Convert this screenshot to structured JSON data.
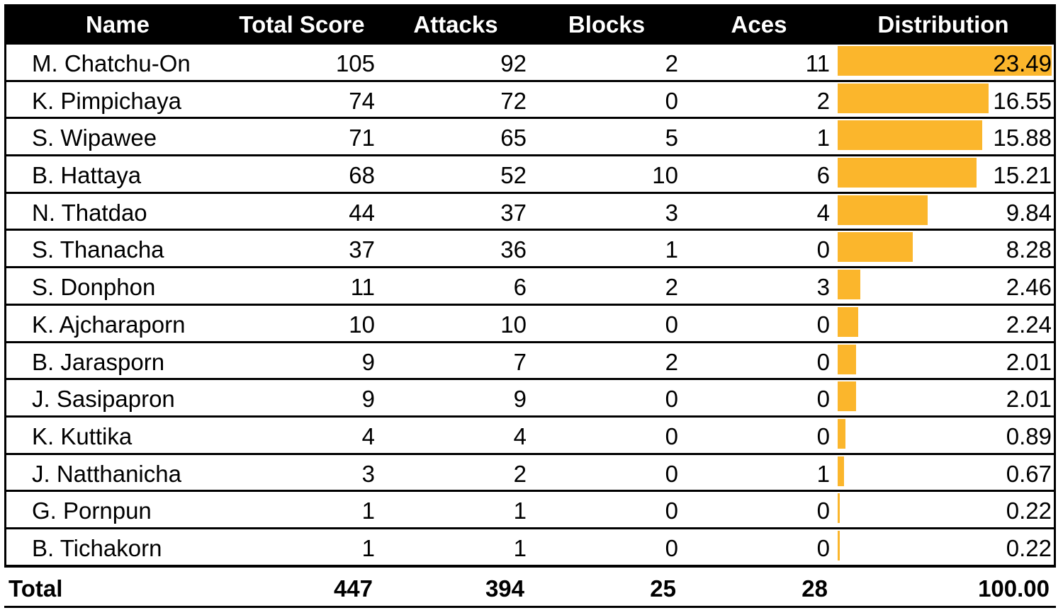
{
  "header": {
    "name": "Name",
    "total_score": "Total Score",
    "attacks": "Attacks",
    "blocks": "Blocks",
    "aces": "Aces",
    "distribution": "Distribution"
  },
  "bar_color": "#fbb62c",
  "rows": [
    {
      "name": "M. Chatchu-On",
      "score": "105",
      "attacks": "92",
      "blocks": "2",
      "aces": "11",
      "dist": "23.49",
      "dist_value": 23.49
    },
    {
      "name": "K. Pimpichaya",
      "score": "74",
      "attacks": "72",
      "blocks": "0",
      "aces": "2",
      "dist": "16.55",
      "dist_value": 16.55
    },
    {
      "name": "S. Wipawee",
      "score": "71",
      "attacks": "65",
      "blocks": "5",
      "aces": "1",
      "dist": "15.88",
      "dist_value": 15.88
    },
    {
      "name": "B. Hattaya",
      "score": "68",
      "attacks": "52",
      "blocks": "10",
      "aces": "6",
      "dist": "15.21",
      "dist_value": 15.21
    },
    {
      "name": "N. Thatdao",
      "score": "44",
      "attacks": "37",
      "blocks": "3",
      "aces": "4",
      "dist": "9.84",
      "dist_value": 9.84
    },
    {
      "name": "S. Thanacha",
      "score": "37",
      "attacks": "36",
      "blocks": "1",
      "aces": "0",
      "dist": "8.28",
      "dist_value": 8.28
    },
    {
      "name": "S. Donphon",
      "score": "11",
      "attacks": "6",
      "blocks": "2",
      "aces": "3",
      "dist": "2.46",
      "dist_value": 2.46
    },
    {
      "name": "K. Ajcharaporn",
      "score": "10",
      "attacks": "10",
      "blocks": "0",
      "aces": "0",
      "dist": "2.24",
      "dist_value": 2.24
    },
    {
      "name": "B. Jarasporn",
      "score": "9",
      "attacks": "7",
      "blocks": "2",
      "aces": "0",
      "dist": "2.01",
      "dist_value": 2.01
    },
    {
      "name": "J. Sasipapron",
      "score": "9",
      "attacks": "9",
      "blocks": "0",
      "aces": "0",
      "dist": "2.01",
      "dist_value": 2.01
    },
    {
      "name": "K. Kuttika",
      "score": "4",
      "attacks": "4",
      "blocks": "0",
      "aces": "0",
      "dist": "0.89",
      "dist_value": 0.89
    },
    {
      "name": "J. Natthanicha",
      "score": "3",
      "attacks": "2",
      "blocks": "0",
      "aces": "1",
      "dist": "0.67",
      "dist_value": 0.67
    },
    {
      "name": "G. Pornpun",
      "score": "1",
      "attacks": "1",
      "blocks": "0",
      "aces": "0",
      "dist": "0.22",
      "dist_value": 0.22
    },
    {
      "name": "B. Tichakorn",
      "score": "1",
      "attacks": "1",
      "blocks": "0",
      "aces": "0",
      "dist": "0.22",
      "dist_value": 0.22
    }
  ],
  "total": {
    "label": "Total",
    "score": "447",
    "attacks": "394",
    "blocks": "25",
    "aces": "28",
    "dist": "100.00"
  }
}
